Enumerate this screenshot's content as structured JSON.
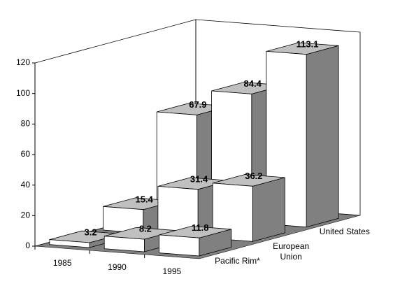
{
  "chart_data": {
    "type": "bar3d",
    "categories": [
      "1985",
      "1990",
      "1995"
    ],
    "series": [
      {
        "name": "Pacific Rim*",
        "values": [
          3.2,
          8.2,
          11.8
        ]
      },
      {
        "name": "European Union",
        "values": [
          15.4,
          31.4,
          36.2
        ]
      },
      {
        "name": "United States",
        "values": [
          67.9,
          84.4,
          113.1
        ]
      }
    ],
    "colors": {
      "front": "#ffffff",
      "side": "#808080",
      "top": "#c0c0c0",
      "floor": "#808080"
    },
    "ylim": [
      0,
      120
    ],
    "yticks": [
      0,
      20,
      40,
      60,
      80,
      100,
      120
    ]
  }
}
